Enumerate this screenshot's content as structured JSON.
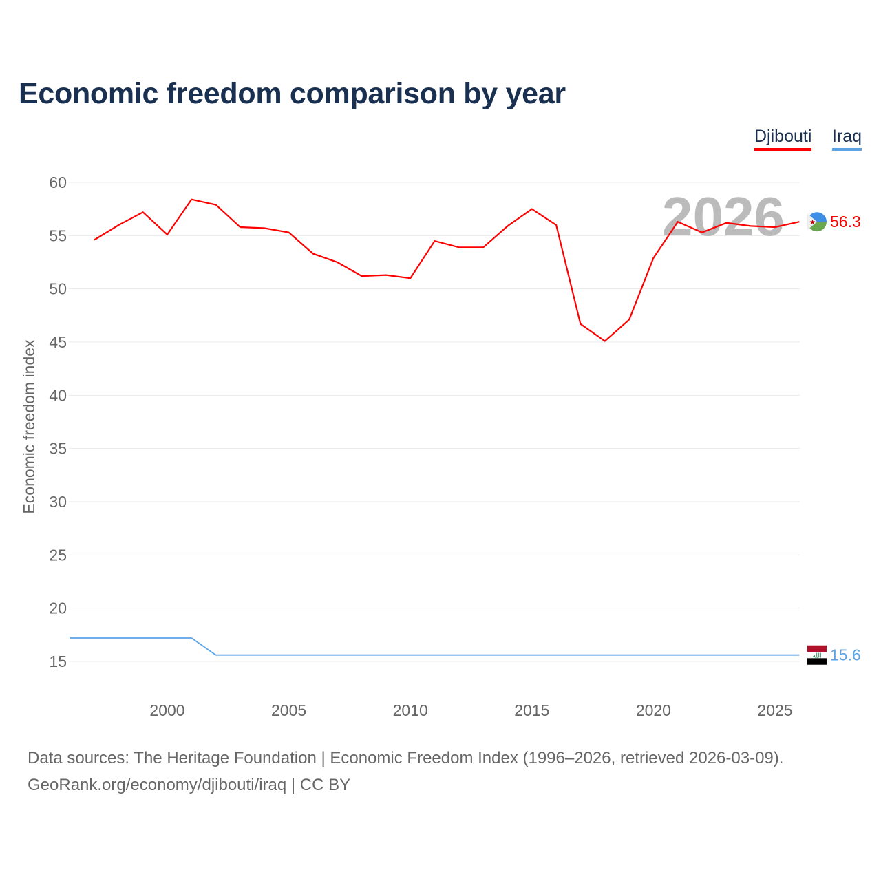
{
  "title": "Economic freedom comparison by year",
  "footer": {
    "line1": "Data sources: The Heritage Foundation | Economic Freedom Index (1996–2026, retrieved 2026-03-09).",
    "line2": "GeoRank.org/economy/djibouti/iraq | CC BY"
  },
  "chart_data": {
    "type": "line",
    "title": "Economic freedom comparison by year",
    "xlabel": "",
    "ylabel": "Economic freedom index",
    "xlim": [
      1996,
      2026
    ],
    "ylim": [
      12,
      62
    ],
    "yticks": [
      15,
      20,
      25,
      30,
      35,
      40,
      45,
      50,
      55,
      60
    ],
    "xticks": [
      2000,
      2005,
      2010,
      2015,
      2020,
      2025
    ],
    "grid": true,
    "legend_placement": "top-right",
    "year_watermark": "2026",
    "series": [
      {
        "name": "Djibouti",
        "color": "#ff0000",
        "end_label": "56.3",
        "x": [
          1997,
          1998,
          1999,
          2000,
          2001,
          2002,
          2003,
          2004,
          2005,
          2006,
          2007,
          2008,
          2009,
          2010,
          2011,
          2012,
          2013,
          2014,
          2015,
          2016,
          2017,
          2018,
          2019,
          2020,
          2021,
          2022,
          2023,
          2024,
          2025,
          2026
        ],
        "values": [
          54.6,
          56.0,
          57.2,
          55.1,
          58.4,
          57.9,
          55.8,
          55.7,
          55.3,
          53.3,
          52.5,
          51.2,
          51.3,
          51.0,
          54.5,
          53.9,
          53.9,
          55.9,
          57.5,
          56.0,
          46.7,
          45.1,
          47.1,
          52.9,
          56.3,
          55.3,
          56.2,
          55.9,
          55.8,
          56.3
        ]
      },
      {
        "name": "Iraq",
        "color": "#5ba3e8",
        "end_label": "15.6",
        "x": [
          1996,
          1997,
          1998,
          1999,
          2000,
          2001,
          2002,
          2003,
          2004,
          2005,
          2006,
          2007,
          2008,
          2009,
          2010,
          2011,
          2012,
          2013,
          2014,
          2015,
          2016,
          2017,
          2018,
          2019,
          2020,
          2021,
          2022,
          2023,
          2024,
          2025,
          2026
        ],
        "values": [
          17.2,
          17.2,
          17.2,
          17.2,
          17.2,
          17.2,
          15.6,
          15.6,
          15.6,
          15.6,
          15.6,
          15.6,
          15.6,
          15.6,
          15.6,
          15.6,
          15.6,
          15.6,
          15.6,
          15.6,
          15.6,
          15.6,
          15.6,
          15.6,
          15.6,
          15.6,
          15.6,
          15.6,
          15.6,
          15.6,
          15.6
        ]
      }
    ]
  }
}
